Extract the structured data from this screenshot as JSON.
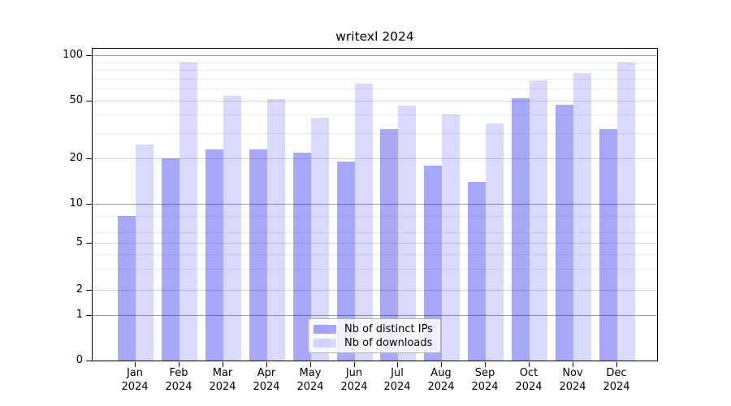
{
  "chart_data": {
    "type": "bar",
    "title": "writexl 2024",
    "xlabel": "",
    "ylabel": "",
    "categories": [
      "Jan 2024",
      "Feb 2024",
      "Mar 2024",
      "Apr 2024",
      "May 2024",
      "Jun 2024",
      "Jul 2024",
      "Aug 2024",
      "Sep 2024",
      "Oct 2024",
      "Nov 2024",
      "Dec 2024"
    ],
    "series": [
      {
        "name": "Nb of distinct IPs",
        "color": "rgba(0,0,238,0.34)",
        "solid_hex": "#a9a9f6",
        "values": [
          8,
          20,
          23,
          23,
          22,
          19,
          32,
          18,
          14,
          52,
          47,
          32
        ]
      },
      {
        "name": "Nb of downloads",
        "color": "rgba(0,0,238,0.15)",
        "solid_hex": "#dcdcfa",
        "values": [
          25,
          89,
          54,
          51,
          38,
          65,
          46,
          40,
          35,
          68,
          76,
          89
        ]
      }
    ],
    "yscale": "log-like with 0 baseline",
    "yticks": [
      0,
      1,
      2,
      5,
      10,
      20,
      50,
      100
    ],
    "minor_gridlines": [
      3,
      4,
      6,
      8,
      30,
      40,
      60,
      70,
      80,
      90
    ],
    "ylim": [
      0,
      112
    ],
    "grid": true,
    "legend_position": "inside bottom-center"
  }
}
